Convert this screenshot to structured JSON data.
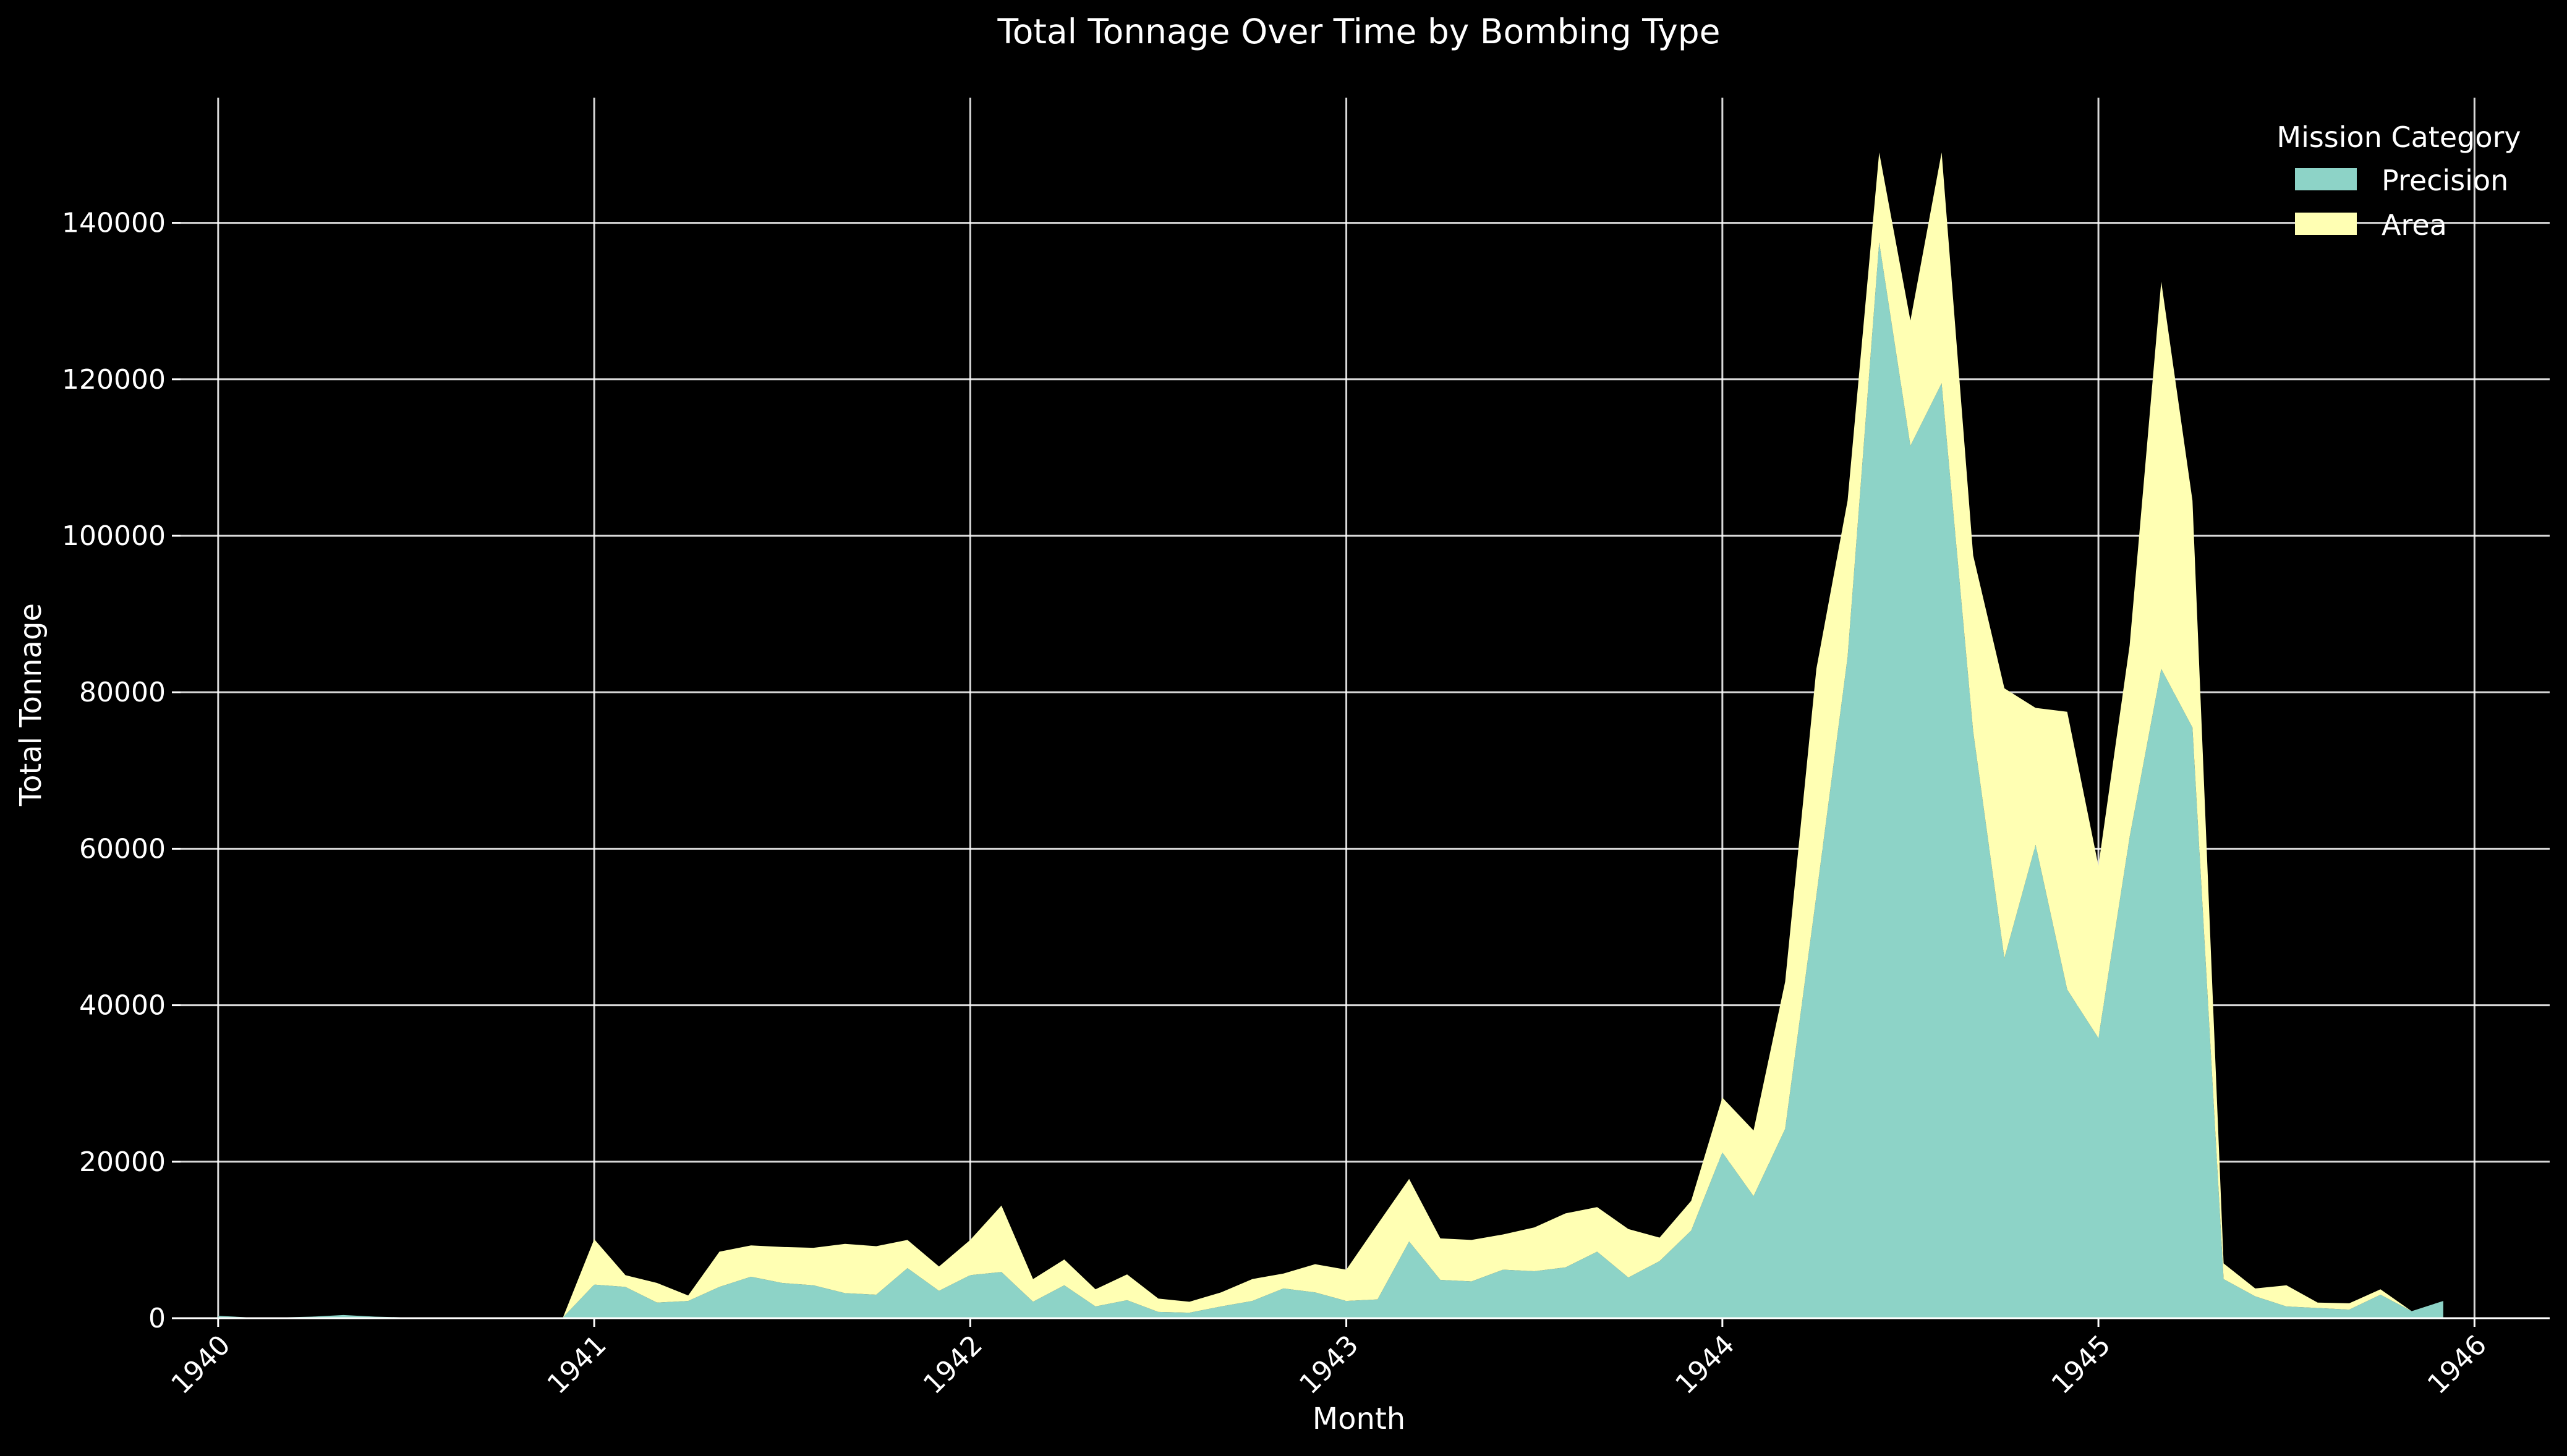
{
  "chart_data": {
    "type": "area",
    "stacked": true,
    "title": "Total Tonnage Over Time by Bombing Type",
    "xlabel": "Month",
    "ylabel": "Total Tonnage",
    "xlim": [
      1939.9,
      1946.2
    ],
    "ylim": [
      0,
      156000
    ],
    "x_ticks": [
      1940,
      1941,
      1942,
      1943,
      1944,
      1945,
      1946
    ],
    "x_tick_labels": [
      "1940",
      "1941",
      "1942",
      "1943",
      "1944",
      "1945",
      "1946"
    ],
    "y_ticks": [
      0,
      20000,
      40000,
      60000,
      80000,
      100000,
      120000,
      140000
    ],
    "y_tick_labels": [
      "0",
      "20000",
      "40000",
      "60000",
      "80000",
      "100000",
      "120000",
      "140000"
    ],
    "grid": true,
    "legend": {
      "title": "Mission Category",
      "placement": "top-right"
    },
    "colors": {
      "Precision": "#8dd3c7",
      "Area": "#ffffb3",
      "background": "#000000"
    },
    "x": [
      1940.0,
      1940.083,
      1940.167,
      1940.25,
      1940.333,
      1940.417,
      1940.5,
      1940.583,
      1940.667,
      1940.75,
      1940.833,
      1940.917,
      1941.0,
      1941.083,
      1941.167,
      1941.25,
      1941.333,
      1941.417,
      1941.5,
      1941.583,
      1941.667,
      1941.75,
      1941.833,
      1941.917,
      1942.0,
      1942.083,
      1942.167,
      1942.25,
      1942.333,
      1942.417,
      1942.5,
      1942.583,
      1942.667,
      1942.75,
      1942.833,
      1942.917,
      1943.0,
      1943.083,
      1943.167,
      1943.25,
      1943.333,
      1943.417,
      1943.5,
      1943.583,
      1943.667,
      1943.75,
      1943.833,
      1943.917,
      1944.0,
      1944.083,
      1944.167,
      1944.25,
      1944.333,
      1944.417,
      1944.5,
      1944.583,
      1944.667,
      1944.75,
      1944.833,
      1944.917,
      1945.0,
      1945.083,
      1945.167,
      1945.25,
      1945.333,
      1945.417,
      1945.5,
      1945.583,
      1945.667,
      1945.75,
      1945.833,
      1945.917
    ],
    "series": [
      {
        "name": "Precision",
        "values": [
          300,
          100,
          100,
          200,
          400,
          200,
          100,
          100,
          100,
          100,
          100,
          100,
          4300,
          4000,
          2000,
          2200,
          4000,
          5300,
          4500,
          4200,
          3200,
          3000,
          6400,
          3500,
          5500,
          5900,
          2100,
          4200,
          1500,
          2300,
          800,
          700,
          1500,
          2200,
          3800,
          3300,
          2200,
          2400,
          9800,
          4900,
          4700,
          6200,
          6000,
          6500,
          8500,
          5200,
          7300,
          11200,
          21200,
          15600,
          24200,
          54000,
          84500,
          137500,
          111500,
          119500,
          75000,
          46000,
          60500,
          42000,
          35800,
          61500,
          83000,
          75500,
          5000,
          2800,
          1500,
          1300,
          1100,
          3000,
          900,
          2200
        ]
      },
      {
        "name": "Area",
        "values": [
          0,
          0,
          0,
          0,
          0,
          0,
          0,
          0,
          0,
          0,
          0,
          0,
          5800,
          1500,
          2500,
          700,
          4500,
          4000,
          4600,
          4800,
          6300,
          6200,
          3600,
          3100,
          4500,
          8500,
          2900,
          3300,
          2200,
          3300,
          1700,
          1400,
          1800,
          2800,
          1900,
          3600,
          4000,
          9600,
          8000,
          5300,
          5300,
          4500,
          5600,
          6900,
          5700,
          6200,
          3000,
          3800,
          7000,
          8400,
          18800,
          29000,
          20000,
          11500,
          16000,
          29500,
          22500,
          34500,
          17500,
          35500,
          22000,
          24500,
          49500,
          29000,
          2000,
          1000,
          2700,
          700,
          800,
          700,
          0,
          0
        ]
      }
    ]
  }
}
